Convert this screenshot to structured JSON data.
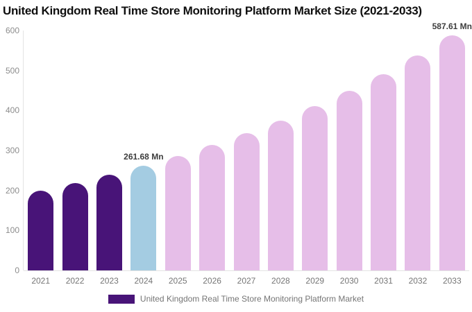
{
  "chart_data": {
    "type": "bar",
    "title": "United Kingdom Real Time Store Monitoring Platform Market Size (2021-2033)",
    "categories": [
      "2021",
      "2022",
      "2023",
      "2024",
      "2025",
      "2026",
      "2027",
      "2028",
      "2029",
      "2030",
      "2031",
      "2032",
      "2033"
    ],
    "values": [
      199.8,
      218.6,
      239.2,
      261.68,
      286.3,
      313.3,
      342.7,
      375.0,
      410.3,
      448.9,
      491.2,
      537.4,
      587.61
    ],
    "bar_colors": [
      "#481478",
      "#481478",
      "#481478",
      "#a4cce2",
      "#e6bee8",
      "#e6bee8",
      "#e6bee8",
      "#e6bee8",
      "#e6bee8",
      "#e6bee8",
      "#e6bee8",
      "#e6bee8",
      "#e6bee8"
    ],
    "annotations": [
      {
        "category": "2024",
        "text": "261.68 Mn"
      },
      {
        "category": "2033",
        "text": "587.61 Mn"
      }
    ],
    "xlabel": "",
    "ylabel": "",
    "ylim": [
      0,
      600
    ],
    "yticks": [
      0,
      100,
      200,
      300,
      400,
      500,
      600
    ],
    "grid": false,
    "legend_position": "bottom",
    "legend": [
      {
        "label": "United Kingdom Real Time Store Monitoring Platform Market",
        "color": "#481478"
      }
    ],
    "axis_color": "#e3e3e3",
    "background_color": "#ffffff"
  }
}
